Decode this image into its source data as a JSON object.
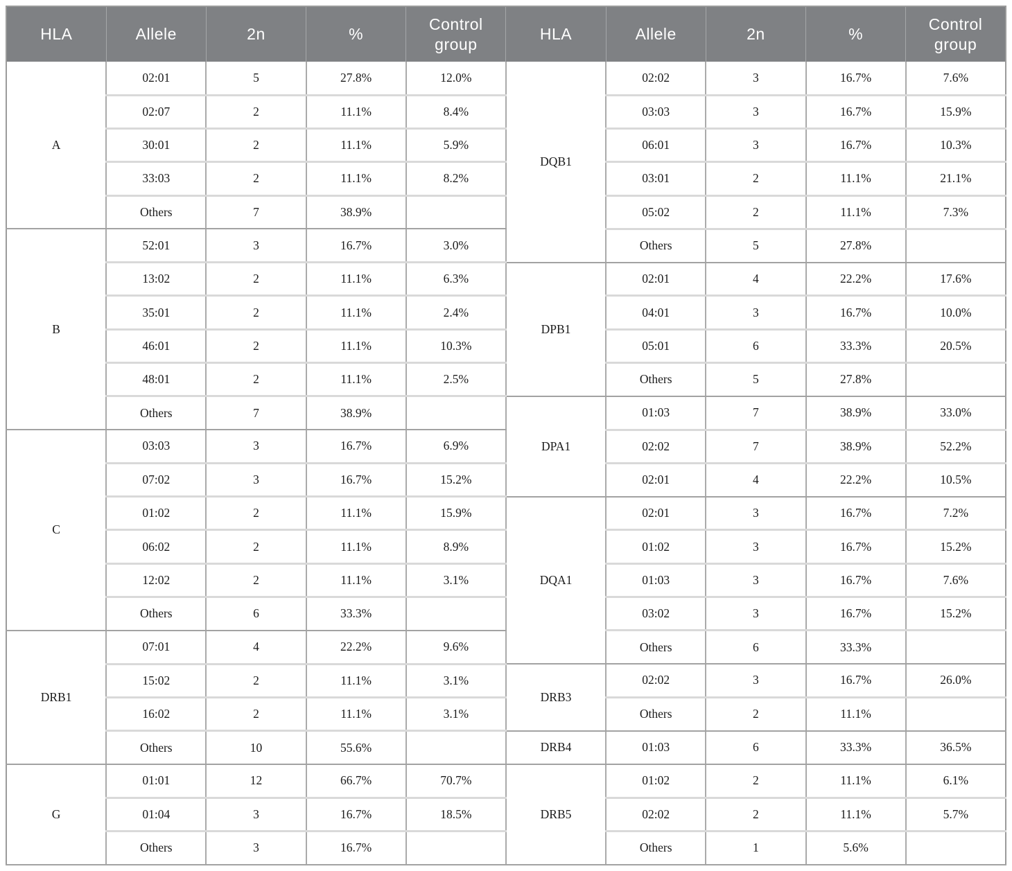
{
  "table": {
    "headers": [
      "HLA",
      "Allele",
      "2n",
      "%",
      "Control group"
    ],
    "left_groups": [
      {
        "hla": "A",
        "rows": [
          {
            "allele": "02:01",
            "n": "5",
            "pct": "27.8%",
            "control": "12.0%"
          },
          {
            "allele": "02:07",
            "n": "2",
            "pct": "11.1%",
            "control": "8.4%"
          },
          {
            "allele": "30:01",
            "n": "2",
            "pct": "11.1%",
            "control": "5.9%"
          },
          {
            "allele": "33:03",
            "n": "2",
            "pct": "11.1%",
            "control": "8.2%"
          },
          {
            "allele": "Others",
            "n": "7",
            "pct": "38.9%",
            "control": ""
          }
        ]
      },
      {
        "hla": "B",
        "rows": [
          {
            "allele": "52:01",
            "n": "3",
            "pct": "16.7%",
            "control": "3.0%"
          },
          {
            "allele": "13:02",
            "n": "2",
            "pct": "11.1%",
            "control": "6.3%"
          },
          {
            "allele": "35:01",
            "n": "2",
            "pct": "11.1%",
            "control": "2.4%"
          },
          {
            "allele": "46:01",
            "n": "2",
            "pct": "11.1%",
            "control": "10.3%"
          },
          {
            "allele": "48:01",
            "n": "2",
            "pct": "11.1%",
            "control": "2.5%"
          },
          {
            "allele": "Others",
            "n": "7",
            "pct": "38.9%",
            "control": ""
          }
        ]
      },
      {
        "hla": "C",
        "rows": [
          {
            "allele": "03:03",
            "n": "3",
            "pct": "16.7%",
            "control": "6.9%"
          },
          {
            "allele": "07:02",
            "n": "3",
            "pct": "16.7%",
            "control": "15.2%"
          },
          {
            "allele": "01:02",
            "n": "2",
            "pct": "11.1%",
            "control": "15.9%"
          },
          {
            "allele": "06:02",
            "n": "2",
            "pct": "11.1%",
            "control": "8.9%"
          },
          {
            "allele": "12:02",
            "n": "2",
            "pct": "11.1%",
            "control": "3.1%"
          },
          {
            "allele": "Others",
            "n": "6",
            "pct": "33.3%",
            "control": ""
          }
        ]
      },
      {
        "hla": "DRB1",
        "rows": [
          {
            "allele": "07:01",
            "n": "4",
            "pct": "22.2%",
            "control": "9.6%"
          },
          {
            "allele": "15:02",
            "n": "2",
            "pct": "11.1%",
            "control": "3.1%"
          },
          {
            "allele": "16:02",
            "n": "2",
            "pct": "11.1%",
            "control": "3.1%"
          },
          {
            "allele": "Others",
            "n": "10",
            "pct": "55.6%",
            "control": ""
          }
        ]
      },
      {
        "hla": "G",
        "rows": [
          {
            "allele": "01:01",
            "n": "12",
            "pct": "66.7%",
            "control": "70.7%"
          },
          {
            "allele": "01:04",
            "n": "3",
            "pct": "16.7%",
            "control": "18.5%"
          },
          {
            "allele": "Others",
            "n": "3",
            "pct": "16.7%",
            "control": ""
          }
        ]
      }
    ],
    "right_groups": [
      {
        "hla": "DQB1",
        "rows": [
          {
            "allele": "02:02",
            "n": "3",
            "pct": "16.7%",
            "control": "7.6%"
          },
          {
            "allele": "03:03",
            "n": "3",
            "pct": "16.7%",
            "control": "15.9%"
          },
          {
            "allele": "06:01",
            "n": "3",
            "pct": "16.7%",
            "control": "10.3%"
          },
          {
            "allele": "03:01",
            "n": "2",
            "pct": "11.1%",
            "control": "21.1%"
          },
          {
            "allele": "05:02",
            "n": "2",
            "pct": "11.1%",
            "control": "7.3%"
          },
          {
            "allele": "Others",
            "n": "5",
            "pct": "27.8%",
            "control": ""
          }
        ]
      },
      {
        "hla": "DPB1",
        "rows": [
          {
            "allele": "02:01",
            "n": "4",
            "pct": "22.2%",
            "control": "17.6%"
          },
          {
            "allele": "04:01",
            "n": "3",
            "pct": "16.7%",
            "control": "10.0%"
          },
          {
            "allele": "05:01",
            "n": "6",
            "pct": "33.3%",
            "control": "20.5%"
          },
          {
            "allele": "Others",
            "n": "5",
            "pct": "27.8%",
            "control": ""
          }
        ]
      },
      {
        "hla": "DPA1",
        "rows": [
          {
            "allele": "01:03",
            "n": "7",
            "pct": "38.9%",
            "control": "33.0%"
          },
          {
            "allele": "02:02",
            "n": "7",
            "pct": "38.9%",
            "control": "52.2%"
          },
          {
            "allele": "02:01",
            "n": "4",
            "pct": "22.2%",
            "control": "10.5%"
          }
        ]
      },
      {
        "hla": "DQA1",
        "rows": [
          {
            "allele": "02:01",
            "n": "3",
            "pct": "16.7%",
            "control": "7.2%"
          },
          {
            "allele": "01:02",
            "n": "3",
            "pct": "16.7%",
            "control": "15.2%"
          },
          {
            "allele": "01:03",
            "n": "3",
            "pct": "16.7%",
            "control": "7.6%"
          },
          {
            "allele": "03:02",
            "n": "3",
            "pct": "16.7%",
            "control": "15.2%"
          },
          {
            "allele": "Others",
            "n": "6",
            "pct": "33.3%",
            "control": ""
          }
        ]
      },
      {
        "hla": "DRB3",
        "rows": [
          {
            "allele": "02:02",
            "n": "3",
            "pct": "16.7%",
            "control": "26.0%"
          },
          {
            "allele": "Others",
            "n": "2",
            "pct": "11.1%",
            "control": ""
          }
        ]
      },
      {
        "hla": "DRB4",
        "rows": [
          {
            "allele": "01:03",
            "n": "6",
            "pct": "33.3%",
            "control": "36.5%"
          }
        ]
      },
      {
        "hla": "DRB5",
        "rows": [
          {
            "allele": "01:02",
            "n": "2",
            "pct": "11.1%",
            "control": "6.1%"
          },
          {
            "allele": "02:02",
            "n": "2",
            "pct": "11.1%",
            "control": "5.7%"
          },
          {
            "allele": "Others",
            "n": "1",
            "pct": "5.6%",
            "control": ""
          }
        ]
      }
    ],
    "colors": {
      "header_bg": "#7f8184",
      "header_text": "#ffffff",
      "row_border": "#d9d9d9",
      "group_border": "#a2a2a2",
      "column_border": "#aaaaaa",
      "body_text": "#1b1b1b"
    }
  }
}
